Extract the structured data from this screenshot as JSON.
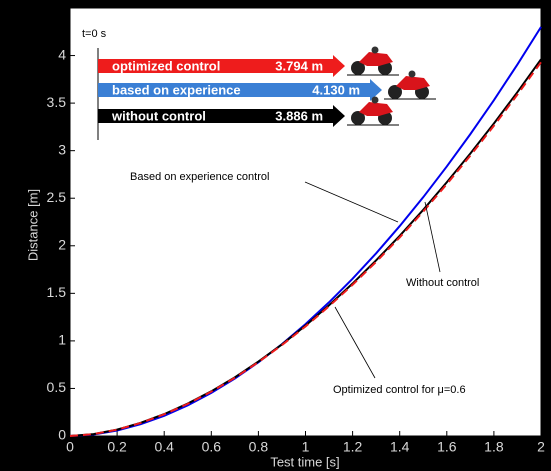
{
  "chart_data": {
    "type": "line",
    "xlabel": "Test time [s]",
    "ylabel": "Distance [m]",
    "x": [
      0,
      0.1,
      0.2,
      0.3,
      0.4,
      0.5,
      0.6,
      0.7,
      0.8,
      0.9,
      1,
      1.1,
      1.2,
      1.3,
      1.4,
      1.5,
      1.6,
      1.7,
      1.8,
      1.9,
      2
    ],
    "series": [
      {
        "color": "#0000ee",
        "style": "solid",
        "values": [
          0,
          0.016,
          0.058,
          0.124,
          0.212,
          0.322,
          0.453,
          0.604,
          0.775,
          0.966,
          1.176,
          1.406,
          1.654,
          1.921,
          2.207,
          2.511,
          2.834,
          3.174,
          3.531,
          3.907,
          4.3
        ]
      },
      {
        "color": "#000000",
        "style": "solid",
        "values": [
          0,
          0.02,
          0.067,
          0.138,
          0.23,
          0.341,
          0.47,
          0.617,
          0.783,
          0.963,
          1.161,
          1.375,
          1.603,
          1.847,
          2.105,
          2.378,
          2.668,
          2.97,
          3.286,
          3.616,
          3.96
        ]
      },
      {
        "color": "#ee1c1c",
        "style": "dashed",
        "values": [
          0,
          0.02,
          0.066,
          0.137,
          0.228,
          0.338,
          0.466,
          0.612,
          0.777,
          0.956,
          1.152,
          1.364,
          1.59,
          1.831,
          2.088,
          2.36,
          2.648,
          2.948,
          3.262,
          3.59,
          3.93
        ]
      }
    ],
    "xlim": [
      0,
      2
    ],
    "ylim": [
      0,
      4.5
    ],
    "xticks": [
      0,
      0.2,
      0.4,
      0.6,
      0.8,
      1,
      1.2,
      1.4,
      1.6,
      1.8,
      2
    ],
    "yticks": [
      0,
      0.5,
      1,
      1.5,
      2,
      2.5,
      3,
      3.5,
      4
    ],
    "annotations": [
      {
        "text": "Based on experience control"
      },
      {
        "text": "Without control"
      },
      {
        "text": "Optimized control for μ=0.6"
      }
    ],
    "inset": {
      "time_label": "t=0 s",
      "rows": [
        {
          "label": "optimized control",
          "distance": "3.794 m",
          "color": "#ee1c1c"
        },
        {
          "label": "based on experience",
          "distance": "4.130 m",
          "color": "#3a7fd5"
        },
        {
          "label": "without control",
          "distance": "3.886 m",
          "color": "#000000"
        }
      ]
    }
  }
}
